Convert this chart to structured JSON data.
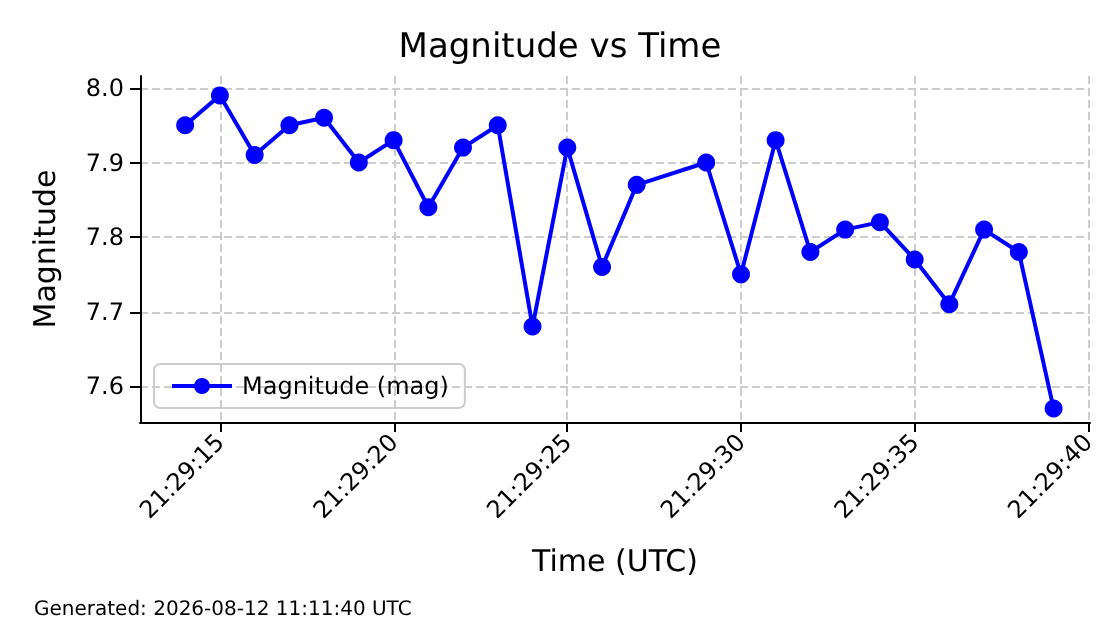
{
  "chart_data": {
    "type": "line",
    "title": "Magnitude vs Time",
    "xlabel": "Time (UTC)",
    "ylabel": "Magnitude",
    "x": [
      21.487222,
      21.4875,
      21.487778,
      21.488056,
      21.488333,
      21.488611,
      21.488889,
      21.489167,
      21.489444,
      21.489722,
      21.49,
      21.490278,
      21.490556,
      21.490833,
      21.491389,
      21.491667,
      21.491944,
      21.492222,
      21.4925,
      21.492778,
      21.493056,
      21.493333,
      21.493611,
      21.493889,
      21.494167
    ],
    "series": [
      {
        "name": "Magnitude (mag)",
        "color": "#0000ff",
        "values": [
          7.95,
          7.99,
          7.91,
          7.95,
          7.96,
          7.9,
          7.93,
          7.84,
          7.92,
          7.95,
          7.68,
          7.92,
          7.76,
          7.87,
          7.9,
          7.75,
          7.93,
          7.78,
          7.81,
          7.82,
          7.77,
          7.71,
          7.81,
          7.78,
          7.57
        ]
      }
    ],
    "xlim": [
      21.486861,
      21.494458
    ],
    "xticks": [
      {
        "value": 21.4875,
        "label": "21:29:15"
      },
      {
        "value": 21.488889,
        "label": "21:29:20"
      },
      {
        "value": 21.490278,
        "label": "21:29:25"
      },
      {
        "value": 21.491667,
        "label": "21:29:30"
      },
      {
        "value": 21.493056,
        "label": "21:29:35"
      },
      {
        "value": 21.494444,
        "label": "21:29:40"
      }
    ],
    "ylim": [
      7.552,
      8.016
    ],
    "yticks": [
      {
        "value": 7.6,
        "label": "7.6"
      },
      {
        "value": 7.7,
        "label": "7.7"
      },
      {
        "value": 7.8,
        "label": "7.8"
      },
      {
        "value": 7.9,
        "label": "7.9"
      },
      {
        "value": 8.0,
        "label": "8.0"
      }
    ],
    "grid": true,
    "legend": "bottom left",
    "marker": "circle",
    "line_style": "solid",
    "annotations": [
      "Generated: 2026-08-12 11:11:40 UTC"
    ]
  }
}
